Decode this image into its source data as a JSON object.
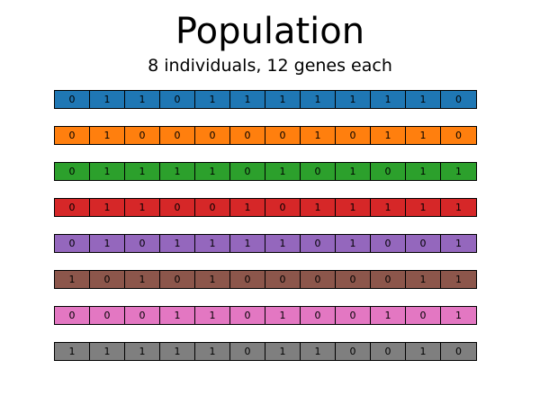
{
  "title": "Population",
  "subtitle": "8 individuals, 12 genes each",
  "individuals": [
    {
      "color": "#1f77b4",
      "genes": [
        "0",
        "1",
        "1",
        "0",
        "1",
        "1",
        "1",
        "1",
        "1",
        "1",
        "1",
        "0"
      ]
    },
    {
      "color": "#ff7f0e",
      "genes": [
        "0",
        "1",
        "0",
        "0",
        "0",
        "0",
        "0",
        "1",
        "0",
        "1",
        "1",
        "0"
      ]
    },
    {
      "color": "#2ca02c",
      "genes": [
        "0",
        "1",
        "1",
        "1",
        "1",
        "0",
        "1",
        "0",
        "1",
        "0",
        "1",
        "1"
      ]
    },
    {
      "color": "#d62728",
      "genes": [
        "0",
        "1",
        "1",
        "0",
        "0",
        "1",
        "0",
        "1",
        "1",
        "1",
        "1",
        "1"
      ]
    },
    {
      "color": "#9467bd",
      "genes": [
        "0",
        "1",
        "0",
        "1",
        "1",
        "1",
        "1",
        "0",
        "1",
        "0",
        "0",
        "1"
      ]
    },
    {
      "color": "#8c564b",
      "genes": [
        "1",
        "0",
        "1",
        "0",
        "1",
        "0",
        "0",
        "0",
        "0",
        "0",
        "1",
        "1"
      ]
    },
    {
      "color": "#e377c2",
      "genes": [
        "0",
        "0",
        "0",
        "1",
        "1",
        "0",
        "1",
        "0",
        "0",
        "1",
        "0",
        "1"
      ]
    },
    {
      "color": "#7f7f7f",
      "genes": [
        "1",
        "1",
        "1",
        "1",
        "1",
        "0",
        "1",
        "1",
        "0",
        "0",
        "1",
        "0"
      ]
    }
  ]
}
